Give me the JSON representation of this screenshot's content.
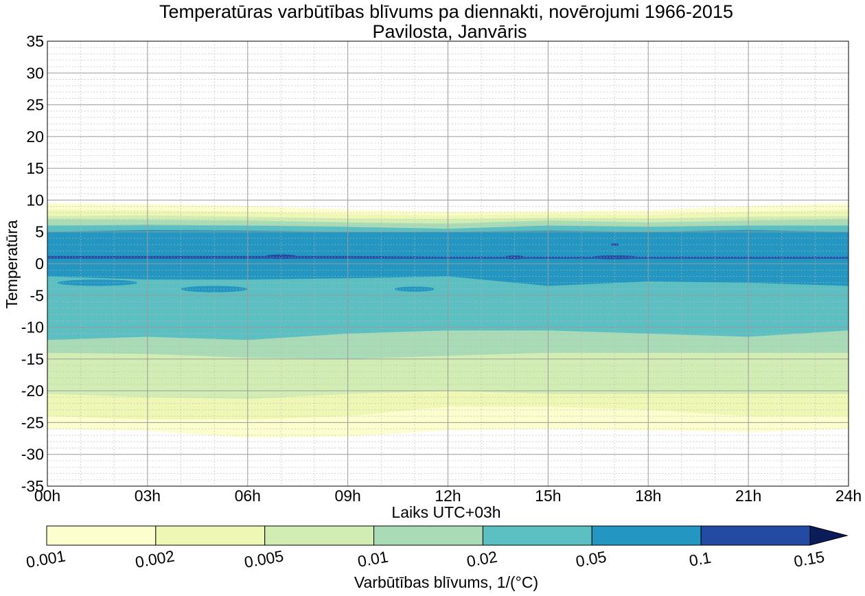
{
  "chart_data": {
    "type": "contourf",
    "title_line1": "Temperatūras varbūtības blīvums pa diennakti, novērojumi 1966-2015",
    "title_line2": "Pavilosta, Janvāris",
    "xlabel": "Laiks UTC+03h",
    "ylabel": "Temperatūra",
    "xlim": [
      0,
      24
    ],
    "ylim": [
      -35,
      35
    ],
    "x_ticks": [
      0,
      3,
      6,
      9,
      12,
      15,
      18,
      21,
      24
    ],
    "x_tick_labels": [
      "00h",
      "03h",
      "06h",
      "09h",
      "12h",
      "15h",
      "18h",
      "21h",
      "24h"
    ],
    "y_ticks": [
      35,
      30,
      25,
      20,
      15,
      10,
      5,
      0,
      -5,
      -10,
      -15,
      -20,
      -25,
      -30,
      -35
    ],
    "y_tick_labels": [
      "35",
      "30",
      "25",
      "20",
      "15",
      "10",
      "5",
      "0",
      "-5",
      "-10",
      "-15",
      "-20",
      "-25",
      "-30",
      "-35"
    ],
    "grid": true,
    "colorbar": {
      "label": "Varbūtības blīvums, 1/(°C)",
      "levels": [
        0.001,
        0.002,
        0.005,
        0.01,
        0.02,
        0.05,
        0.1,
        0.15
      ],
      "level_labels": [
        "0.001",
        "0.002",
        "0.005",
        "0.01",
        "0.02",
        "0.05",
        "0.1",
        "0.15"
      ],
      "colors": [
        "#fdfecd",
        "#eef8b4",
        "#d2edb3",
        "#a9dbb6",
        "#5cbfc1",
        "#2397c1",
        "#234ba3"
      ],
      "extend_color": "#0c1c5a",
      "extend": "max"
    },
    "time_x": [
      0,
      3,
      6,
      9,
      12,
      15,
      18,
      21,
      24
    ],
    "bands": [
      {
        "level": 0.001,
        "top": [
          9.5,
          9.4,
          9.1,
          8.5,
          8.2,
          8.3,
          8.4,
          9.1,
          9.5
        ],
        "bottom": [
          -26,
          -26.3,
          -27.4,
          -27.2,
          -26.2,
          -26,
          -26.2,
          -26.5,
          -26
        ]
      },
      {
        "level": 0.002,
        "top": [
          8.5,
          8.4,
          8.2,
          7.8,
          7.6,
          7.8,
          7.7,
          8.2,
          8.5
        ],
        "bottom": [
          -24,
          -24.5,
          -24.5,
          -24,
          -22.5,
          -22.5,
          -23,
          -24,
          -24
        ]
      },
      {
        "level": 0.005,
        "top": [
          7.5,
          7.6,
          7.4,
          7.1,
          7,
          7.2,
          7.1,
          7.4,
          7.5
        ],
        "bottom": [
          -20.5,
          -21,
          -21.3,
          -20.5,
          -20,
          -20.5,
          -20.5,
          -20.5,
          -20.5
        ]
      },
      {
        "level": 0.01,
        "top": [
          7,
          6.9,
          6.8,
          6.5,
          6.3,
          6.8,
          6.5,
          6.8,
          7
        ],
        "bottom": [
          -14,
          -14.2,
          -14.8,
          -15,
          -14.5,
          -14,
          -14,
          -14,
          -14
        ]
      },
      {
        "level": 0.02,
        "top": [
          6,
          6.1,
          6,
          5.8,
          5.5,
          6,
          5.8,
          6,
          6
        ],
        "bottom": [
          -12,
          -11.5,
          -12,
          -11,
          -10.5,
          -10.5,
          -11,
          -11.5,
          -10.5
        ]
      },
      {
        "level": 0.05,
        "top": [
          5,
          5.3,
          5.2,
          5,
          5,
          5.2,
          5,
          5.3,
          5
        ],
        "bottom": [
          -2,
          -2.5,
          -2.5,
          -2.3,
          -2,
          -3.5,
          -2.8,
          -3,
          -3.5
        ]
      },
      {
        "level": 0.1,
        "top": [
          1.2,
          1.2,
          1.2,
          1.2,
          1.1,
          1.1,
          1.1,
          1.1,
          1.1
        ],
        "bottom": [
          0.8,
          0.8,
          0.8,
          0.8,
          0.8,
          0.8,
          0.8,
          0.8,
          0.8
        ]
      }
    ]
  }
}
